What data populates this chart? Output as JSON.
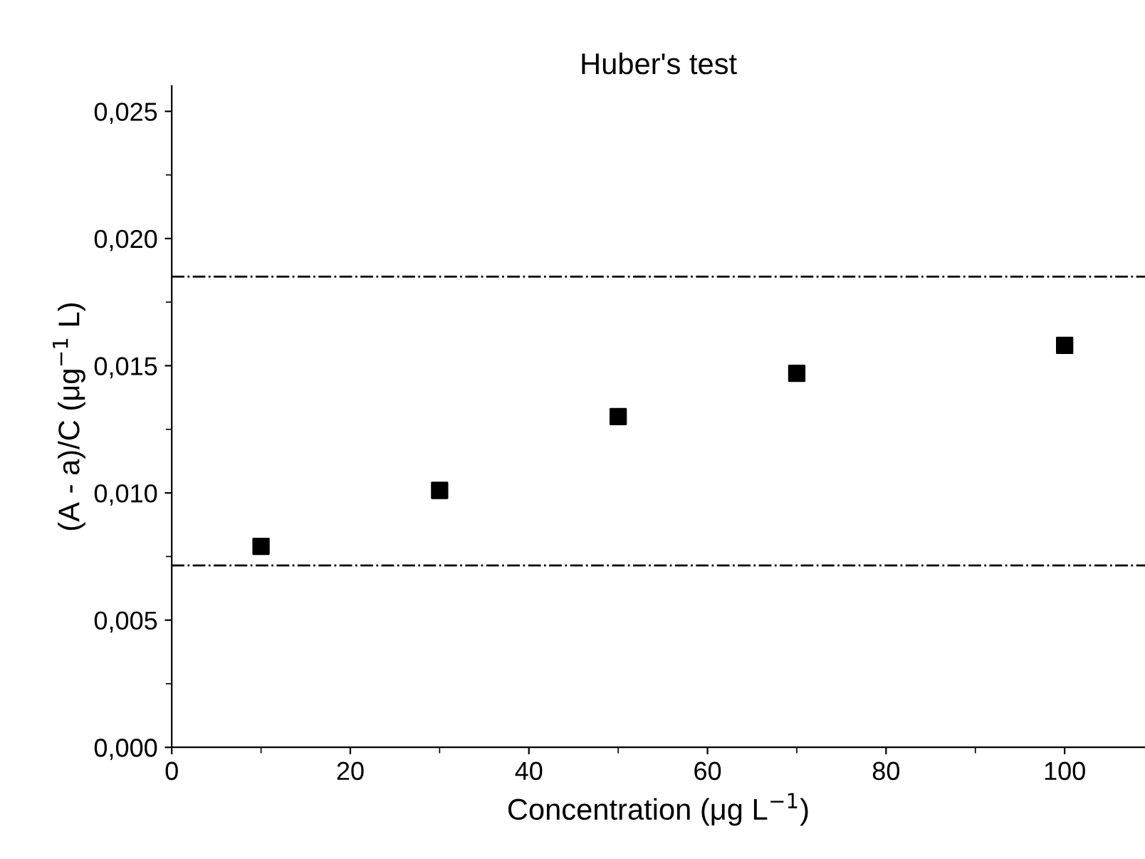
{
  "chart_data": {
    "type": "scatter",
    "title": "Huber's test",
    "xlabel": "Concentration (μg L$^{−1}$)",
    "ylabel": "(A - a)/C (μg$^{−1}$ L)",
    "x": [
      10,
      30,
      50,
      70,
      100
    ],
    "series": [
      {
        "color": "#000000",
        "values": [
          0.0079,
          0.0101,
          0.013,
          0.0147,
          0.0158
        ]
      }
    ],
    "marker": "square",
    "xlim": [
      0,
      109
    ],
    "xticks": [
      0,
      20,
      40,
      60,
      80,
      100
    ],
    "ylim": [
      0,
      0.026
    ],
    "yticks": [
      {
        "value": 0,
        "label": "0,000"
      },
      {
        "value": 0.005,
        "label": "0,005"
      },
      {
        "value": 0.01,
        "label": "0,010"
      },
      {
        "value": 0.015,
        "label": "0,015"
      },
      {
        "value": 0.02,
        "label": "0,020"
      },
      {
        "value": 0.025,
        "label": "0,025"
      }
    ],
    "ref_lines": [
      {
        "axis": "y",
        "value": 0.0185,
        "label": null,
        "color": "#000000",
        "line_style": "dashdot"
      },
      {
        "axis": "y",
        "value": 0.00715,
        "label": null,
        "color": "#000000",
        "line_style": "dashdot"
      }
    ],
    "grid": false,
    "legend": false
  }
}
